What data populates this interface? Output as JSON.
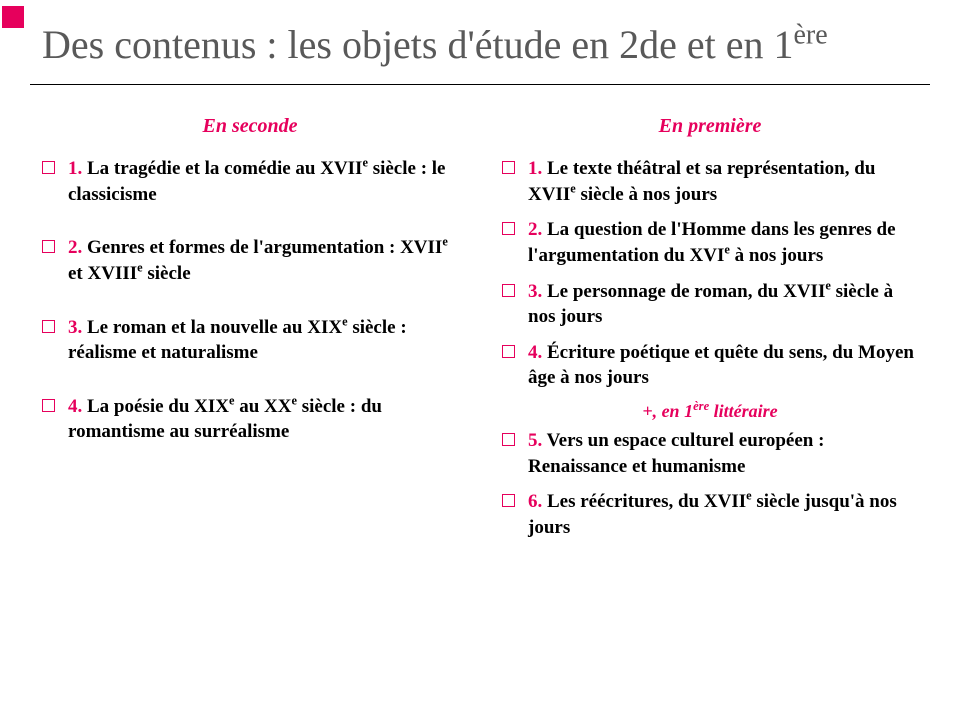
{
  "accent_color": "#e6005c",
  "title_color": "#595959",
  "text_color": "#000000",
  "background_color": "#ffffff",
  "title_html": "Des contenus : les objets d'étude en 2de et en 1<sup>ère</sup>",
  "left": {
    "heading": "En seconde",
    "items": [
      "<span class=\"num\">1.</span> La tragédie et la comédie au XVII<span class=\"sup-small\">e</span> siècle : le classicisme",
      "<span class=\"num\">2.</span> Genres et formes de l'argumentation : XVII<span class=\"sup-small\">e</span> et XVIII<span class=\"sup-small\">e</span> siècle",
      "<span class=\"num\">3.</span> Le roman et la nouvelle au XIX<span class=\"sup-small\">e</span> siècle : réalisme et naturalisme",
      "<span class=\"num\">4.</span> La poésie du XIX<span class=\"sup-small\">e</span> au XX<span class=\"sup-small\">e</span> siècle : du romantisme au surréalisme"
    ]
  },
  "right": {
    "heading": "En première",
    "items_a": [
      "<span class=\"num\">1.</span> Le texte théâtral et sa représentation, du XVII<span class=\"sup-small\">e</span> siècle à nos jours",
      "<span class=\"num\">2.</span> La question de l'Homme dans les genres de l'argumentation du XVI<span class=\"sup-small\">e</span> à nos jours",
      "<span class=\"num\">3.</span> Le personnage de roman, du XVII<span class=\"sup-small\">e</span> siècle à nos jours",
      "<span class=\"num\">4.</span> Écriture poétique et quête du sens, du Moyen âge à nos jours"
    ],
    "subheading_html": "+, en 1<sup>ère</sup> littéraire",
    "items_b": [
      "<span class=\"num\">5.</span> Vers un espace culturel européen : Renaissance et humanisme",
      "<span class=\"num\">6.</span> Les réécritures, du XVII<span class=\"sup-small\">e</span> siècle jusqu'à nos jours"
    ]
  }
}
